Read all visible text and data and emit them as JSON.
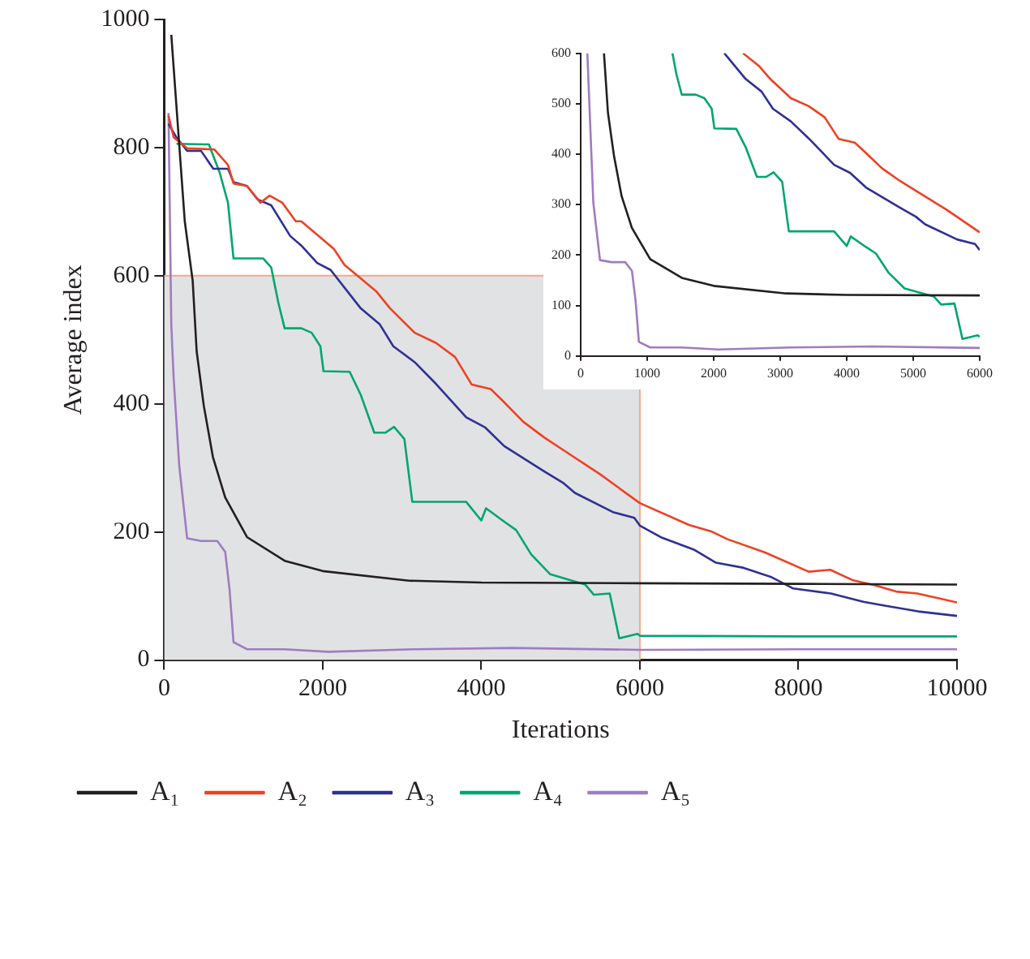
{
  "chart_data": [
    {
      "type": "line",
      "xlabel": "Iterations",
      "ylabel": "Average index",
      "xlim": [
        0,
        10000
      ],
      "xticks": [
        0,
        2000,
        4000,
        6000,
        8000,
        10000
      ],
      "ylim": [
        0,
        1000
      ],
      "yticks": [
        0,
        200,
        400,
        600,
        800,
        1000
      ],
      "grid": false,
      "legend": "bottom",
      "series": [
        {
          "name": "A₁",
          "color": "#231f20",
          "x": [
            90,
            260,
            360,
            410,
            500,
            615,
            770,
            1045,
            1520,
            2000,
            3090,
            4000,
            6000,
            8000,
            10000
          ],
          "values": [
            976,
            685,
            592,
            482,
            397,
            317,
            254,
            192,
            155,
            139,
            124,
            121,
            120,
            119,
            118
          ]
        },
        {
          "name": "A₂",
          "color": "#ef4123",
          "x": [
            55,
            120,
            290,
            635,
            805,
            875,
            1045,
            1215,
            1330,
            1490,
            1660,
            1730,
            2140,
            2275,
            2680,
            2850,
            3160,
            3430,
            3670,
            3880,
            4120,
            4260,
            4530,
            4800,
            5070,
            5500,
            6000,
            6620,
            6900,
            7100,
            7580,
            8130,
            8400,
            8680,
            8960,
            9230,
            9500,
            10000
          ],
          "values": [
            850,
            816,
            799,
            797,
            773,
            744,
            740,
            714,
            725,
            714,
            685,
            685,
            642,
            617,
            575,
            549,
            511,
            495,
            473,
            430,
            423,
            406,
            372,
            347,
            325,
            290,
            245,
            211,
            201,
            189,
            168,
            138,
            141,
            125,
            117,
            107,
            104,
            90
          ]
        },
        {
          "name": "A₃",
          "color": "#2e3192",
          "x": [
            55,
            155,
            290,
            465,
            620,
            805,
            875,
            1045,
            1180,
            1350,
            1590,
            1730,
            1930,
            2100,
            2480,
            2720,
            2890,
            3160,
            3430,
            3810,
            4050,
            4290,
            4800,
            5040,
            5180,
            5660,
            5930,
            6000,
            6280,
            6690,
            6960,
            7310,
            7650,
            7930,
            8410,
            8820,
            9090,
            9510,
            10000
          ],
          "values": [
            837,
            816,
            795,
            795,
            767,
            767,
            746,
            740,
            719,
            710,
            662,
            647,
            620,
            609,
            549,
            524,
            490,
            465,
            431,
            379,
            363,
            334,
            294,
            276,
            261,
            231,
            222,
            210,
            191,
            172,
            152,
            144,
            130,
            112,
            104,
            91,
            85,
            76,
            69
          ]
        },
        {
          "name": "A₄",
          "color": "#00a66e",
          "x": [
            155,
            565,
            700,
            805,
            875,
            1250,
            1350,
            1440,
            1520,
            1730,
            1860,
            1970,
            2010,
            2340,
            2480,
            2650,
            2790,
            2900,
            3030,
            3130,
            3810,
            4000,
            4060,
            4290,
            4440,
            4630,
            4870,
            5310,
            5420,
            5620,
            5740,
            5970,
            6000,
            8000,
            10000
          ],
          "values": [
            806,
            805,
            761,
            714,
            627,
            627,
            613,
            558,
            518,
            518,
            511,
            490,
            451,
            450,
            414,
            355,
            355,
            364,
            345,
            247,
            247,
            218,
            237,
            216,
            203,
            165,
            134,
            118,
            102,
            104,
            34,
            41,
            38,
            37,
            37
          ]
        },
        {
          "type": "step",
          "color": "#f4a98a",
          "x": [
            0,
            6000
          ],
          "values": [
            600,
            0
          ]
        },
        {
          "name": "A₅",
          "color": "#a07cc0",
          "x": [
            55,
            90,
            120,
            190,
            290,
            465,
            670,
            770,
            825,
            875,
            1045,
            1520,
            2070,
            3160,
            4390,
            6000,
            8000,
            10000
          ],
          "values": [
            854,
            524,
            440,
            304,
            190,
            186,
            186,
            169,
            110,
            28,
            17,
            17,
            13,
            17,
            19,
            16,
            17,
            17
          ]
        }
      ]
    },
    {
      "type": "line",
      "xlim": [
        0,
        6000
      ],
      "xticks": [
        0,
        1000,
        2000,
        3000,
        4000,
        5000,
        6000
      ],
      "ylim": [
        0,
        600
      ],
      "yticks": [
        0,
        100,
        200,
        300,
        400,
        500,
        600
      ],
      "grid": false,
      "series": [
        {
          "color": "#231f20",
          "x": [
            350,
            410,
            500,
            615,
            770,
            1045,
            1520,
            2000,
            3090,
            4000,
            6000
          ],
          "values": [
            600,
            482,
            397,
            317,
            254,
            192,
            155,
            139,
            124,
            121,
            120
          ]
        },
        {
          "color": "#ef4123",
          "x": [
            2440,
            2680,
            2850,
            3160,
            3430,
            3670,
            3880,
            4120,
            4260,
            4530,
            4800,
            5070,
            5500,
            6000
          ],
          "values": [
            600,
            575,
            549,
            511,
            495,
            473,
            430,
            423,
            406,
            372,
            347,
            325,
            290,
            245
          ]
        },
        {
          "color": "#2e3192",
          "x": [
            2160,
            2480,
            2720,
            2890,
            3160,
            3430,
            3810,
            4050,
            4290,
            4800,
            5040,
            5180,
            5660,
            5930,
            6000
          ],
          "values": [
            600,
            549,
            524,
            490,
            465,
            431,
            379,
            363,
            334,
            294,
            276,
            261,
            231,
            222,
            210
          ]
        },
        {
          "color": "#00a66e",
          "x": [
            1380,
            1440,
            1520,
            1730,
            1860,
            1970,
            2010,
            2340,
            2480,
            2650,
            2790,
            2900,
            3030,
            3130,
            3810,
            4000,
            4060,
            4290,
            4440,
            4630,
            4870,
            5310,
            5420,
            5620,
            5740,
            5970,
            6000
          ],
          "values": [
            600,
            558,
            518,
            518,
            511,
            490,
            451,
            450,
            414,
            355,
            355,
            364,
            345,
            247,
            247,
            218,
            237,
            216,
            203,
            165,
            134,
            118,
            102,
            104,
            34,
            41,
            38
          ]
        },
        {
          "color": "#a07cc0",
          "x": [
            100,
            190,
            290,
            465,
            670,
            770,
            825,
            875,
            1045,
            1520,
            2070,
            3160,
            4390,
            6000
          ],
          "values": [
            600,
            304,
            190,
            186,
            186,
            169,
            110,
            28,
            17,
            17,
            13,
            17,
            19,
            16
          ]
        }
      ]
    }
  ]
}
